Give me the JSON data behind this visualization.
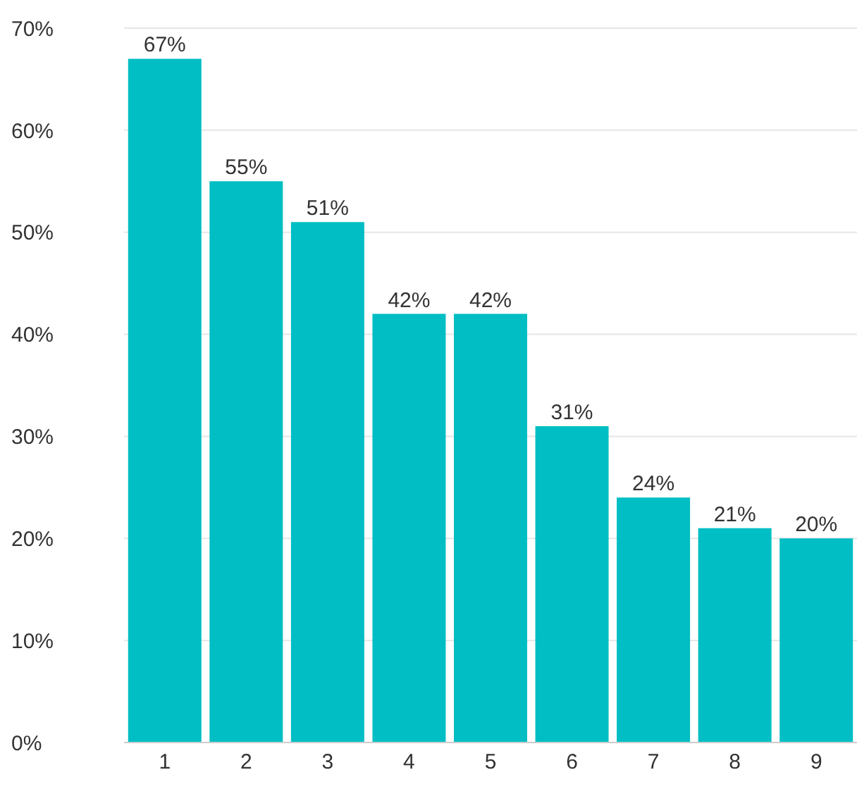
{
  "chart_data": {
    "type": "bar",
    "categories": [
      "1",
      "2",
      "3",
      "4",
      "5",
      "6",
      "7",
      "8",
      "9"
    ],
    "values": [
      67,
      55,
      51,
      42,
      42,
      31,
      24,
      21,
      20
    ],
    "value_labels": [
      "67%",
      "55%",
      "51%",
      "42%",
      "42%",
      "31%",
      "24%",
      "21%",
      "20%"
    ],
    "color": "#00bec4",
    "ylim": [
      0,
      70
    ],
    "yticks": [
      {
        "value": 0,
        "label": "0%"
      },
      {
        "value": 10,
        "label": "10%"
      },
      {
        "value": 20,
        "label": "20%"
      },
      {
        "value": 30,
        "label": "30%"
      },
      {
        "value": 40,
        "label": "40%"
      },
      {
        "value": 50,
        "label": "50%"
      },
      {
        "value": 60,
        "label": "60%"
      },
      {
        "value": 70,
        "label": "70%"
      }
    ],
    "grid": "y"
  }
}
